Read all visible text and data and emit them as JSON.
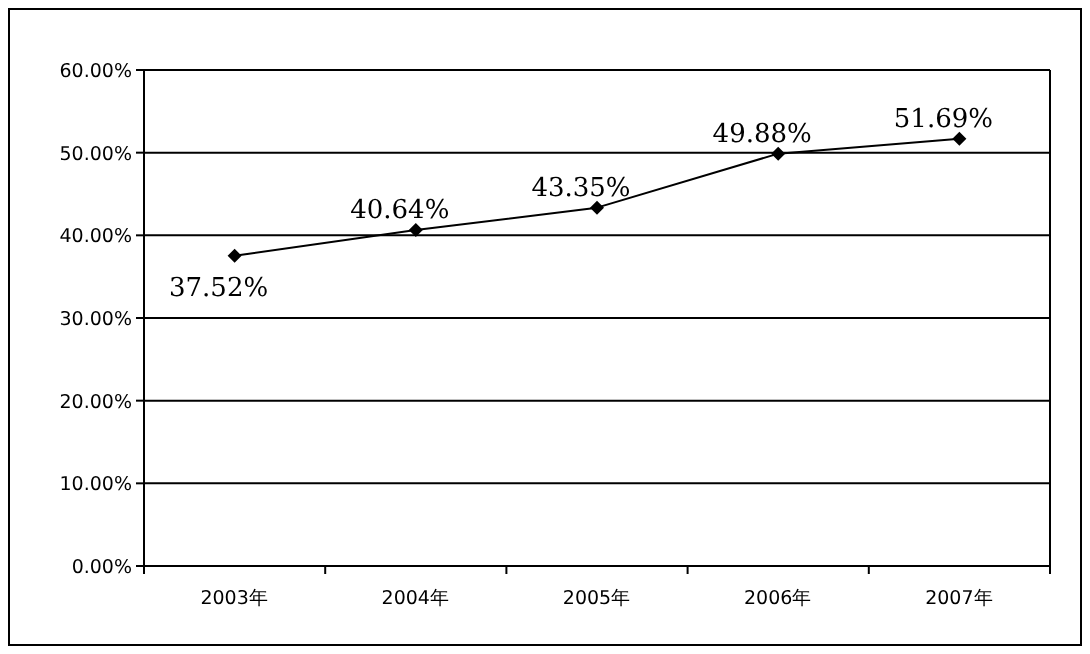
{
  "chart_data": {
    "type": "line",
    "categories": [
      "2003年",
      "2004年",
      "2005年",
      "2006年",
      "2007年"
    ],
    "series": [
      {
        "color": "#000000",
        "values": [
          37.52,
          40.64,
          43.35,
          49.88,
          51.69
        ],
        "value_labels": [
          "37.52%",
          "40.64%",
          "43.35%",
          "49.88%",
          "51.69%"
        ]
      }
    ],
    "ylim": [
      0,
      60
    ],
    "yticks": [
      {
        "value": 0,
        "label": "0.00%"
      },
      {
        "value": 10,
        "label": "10.00%"
      },
      {
        "value": 20,
        "label": "20.00%"
      },
      {
        "value": 30,
        "label": "30.00%"
      },
      {
        "value": 40,
        "label": "40.00%"
      },
      {
        "value": 50,
        "label": "50.00%"
      },
      {
        "value": 60,
        "label": "60.00%"
      }
    ],
    "grid": "y",
    "marker": "diamond",
    "line_style": "solid"
  }
}
